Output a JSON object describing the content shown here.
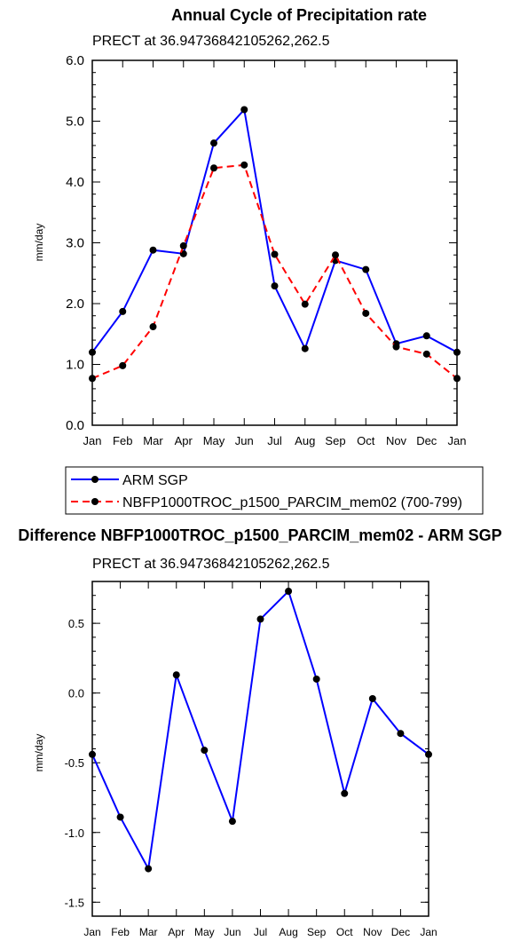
{
  "chart_data": [
    {
      "type": "line",
      "title": "Annual Cycle of Precipitation rate",
      "subtitle": "PRECT at 36.94736842105262,262.5",
      "ylabel": "mm/day",
      "categories": [
        "Jan",
        "Feb",
        "Mar",
        "Apr",
        "May",
        "Jun",
        "Jul",
        "Aug",
        "Sep",
        "Oct",
        "Nov",
        "Dec",
        "Jan"
      ],
      "ylim": [
        0,
        6
      ],
      "yticks": [
        0,
        1,
        2,
        3,
        4,
        5,
        6
      ],
      "ytick_labels": [
        "0.0",
        "1.0",
        "2.0",
        "3.0",
        "4.0",
        "5.0",
        "6.0"
      ],
      "series": [
        {
          "name": "ARM SGP",
          "color": "#0000ff",
          "dash": "solid",
          "values": [
            1.2,
            1.87,
            2.88,
            2.82,
            4.64,
            5.19,
            2.29,
            1.26,
            2.71,
            2.56,
            1.34,
            1.47,
            1.2
          ]
        },
        {
          "name": "NBFP1000TROC_p1500_PARCIM_mem02 (700-799)",
          "color": "#ff0000",
          "dash": "dashed",
          "values": [
            0.77,
            0.98,
            1.62,
            2.95,
            4.23,
            4.28,
            2.81,
            1.99,
            2.8,
            1.84,
            1.29,
            1.17,
            0.77
          ]
        }
      ],
      "legend": "below"
    },
    {
      "type": "line",
      "title": "Difference NBFP1000TROC_p1500_PARCIM_mem02 - ARM SGP",
      "subtitle": "PRECT at 36.94736842105262,262.5",
      "ylabel": "mm/day",
      "categories": [
        "Jan",
        "Feb",
        "Mar",
        "Apr",
        "May",
        "Jun",
        "Jul",
        "Aug",
        "Sep",
        "Oct",
        "Nov",
        "Dec",
        "Jan"
      ],
      "ylim": [
        -1.6,
        0.8
      ],
      "yticks": [
        -1.5,
        -1.0,
        -0.5,
        0.0,
        0.5
      ],
      "ytick_labels": [
        "-1.5",
        "-1.0",
        "-0.5",
        "0.0",
        "0.5"
      ],
      "series": [
        {
          "color": "#0000ff",
          "dash": "solid",
          "values": [
            -0.44,
            -0.89,
            -1.26,
            0.13,
            -0.41,
            -0.92,
            0.53,
            0.73,
            0.1,
            -0.72,
            -0.04,
            -0.29,
            -0.44
          ]
        }
      ]
    }
  ]
}
